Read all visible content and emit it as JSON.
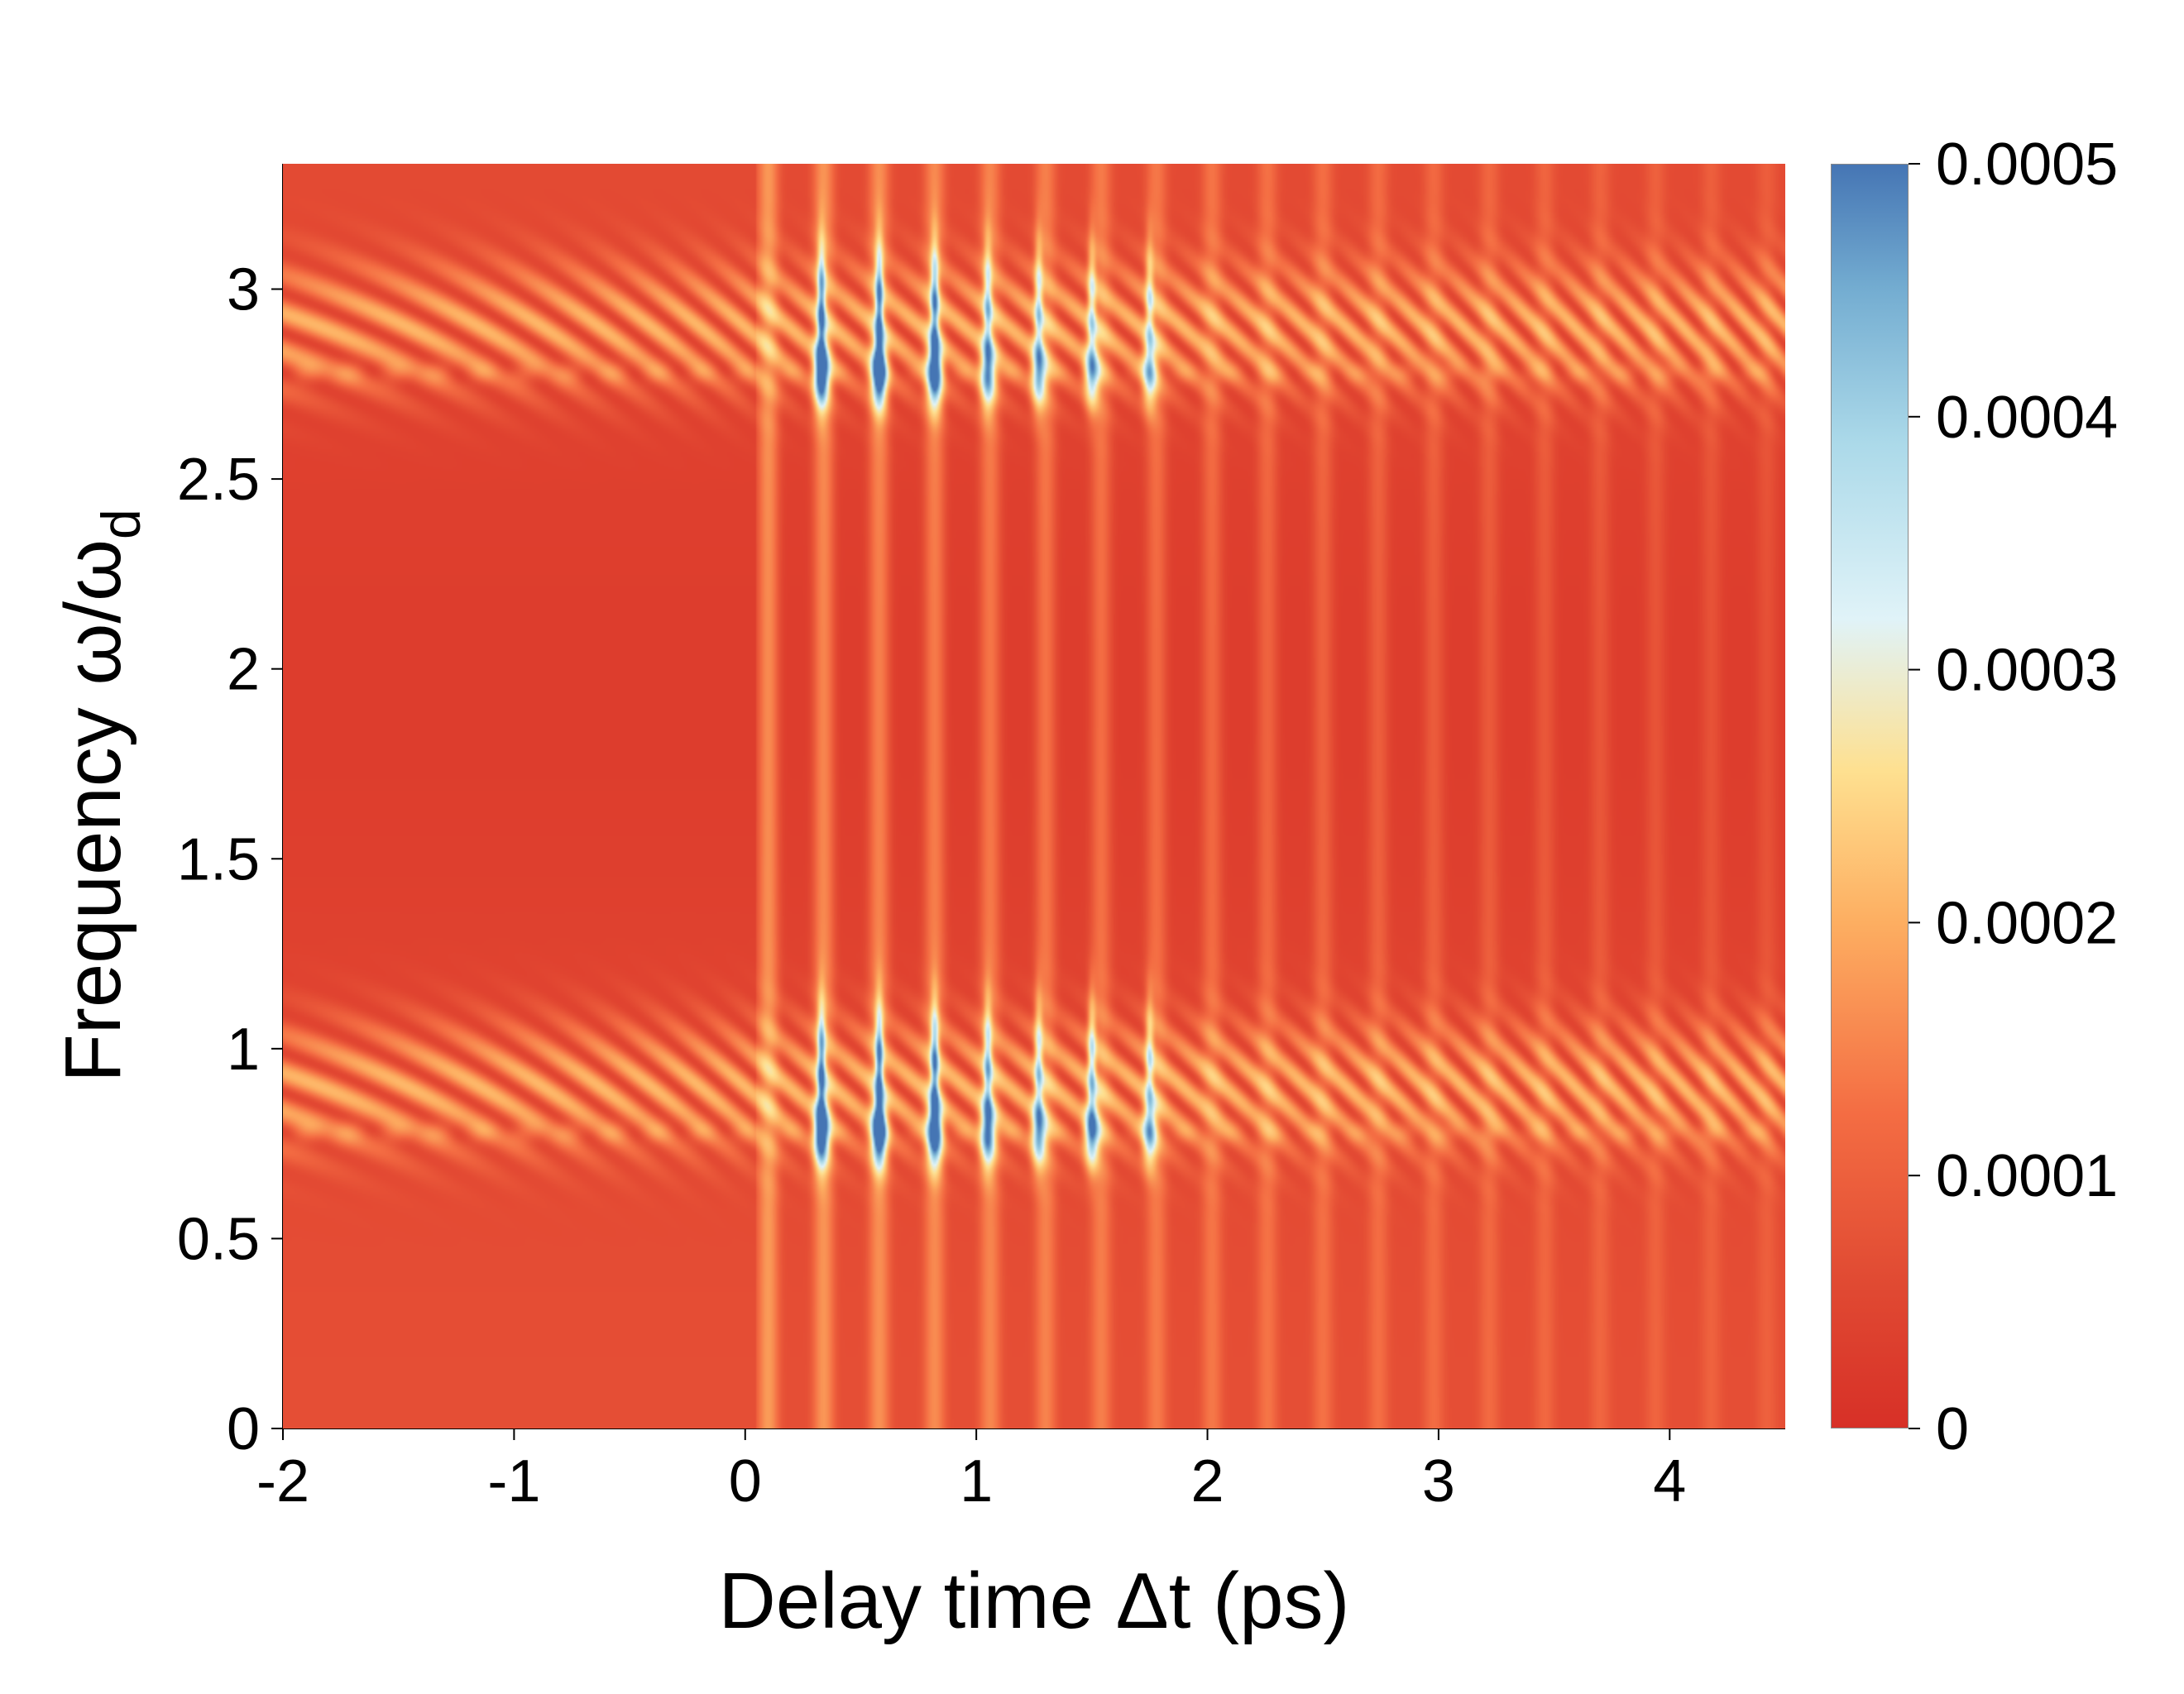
{
  "chart_data": {
    "type": "heatmap",
    "title": "",
    "xlabel": "Delay time Δt (ps)",
    "ylabel": "Frequency ω/ω",
    "ylabel_subscript": "d",
    "xlim": [
      -2,
      4.5
    ],
    "ylim": [
      0,
      3.33
    ],
    "x_ticks": [
      -2,
      -1,
      0,
      1,
      2,
      3,
      4
    ],
    "x_tick_labels": [
      "-2",
      "-1",
      "0",
      "1",
      "2",
      "3",
      "4"
    ],
    "y_ticks": [
      0,
      0.5,
      1,
      1.5,
      2,
      2.5,
      3
    ],
    "y_tick_labels": [
      "0",
      "0.5",
      "1",
      "1.5",
      "2",
      "2.5",
      "3"
    ],
    "colorbar": {
      "range": [
        0,
        0.0005
      ],
      "ticks": [
        0,
        0.0001,
        0.0002,
        0.0003,
        0.0004,
        0.0005
      ],
      "tick_labels": [
        "0",
        "0.0001",
        "0.0002",
        "0.0003",
        "0.0004",
        "0.0005"
      ],
      "colormap": [
        "#d73027",
        "#f46d43",
        "#fdae61",
        "#fee090",
        "#e0f3f8",
        "#abd9e9",
        "#74add1",
        "#4575b4"
      ]
    },
    "bands": [
      {
        "center_frequency": 0.78,
        "upper_edge": 1.02
      },
      {
        "center_frequency": 2.78,
        "upper_edge": 3.02
      }
    ],
    "peaks": [
      {
        "x": 0.33,
        "y": 0.78,
        "value": 0.00048
      },
      {
        "x": 0.58,
        "y": 0.78,
        "value": 0.0005
      },
      {
        "x": 0.82,
        "y": 0.78,
        "value": 0.00047
      },
      {
        "x": 1.05,
        "y": 0.78,
        "value": 0.00036
      },
      {
        "x": 1.27,
        "y": 0.78,
        "value": 0.00032
      },
      {
        "x": 1.5,
        "y": 0.78,
        "value": 0.00035
      },
      {
        "x": 1.75,
        "y": 0.78,
        "value": 0.00028
      },
      {
        "x": 0.33,
        "y": 2.78,
        "value": 0.00048
      },
      {
        "x": 0.58,
        "y": 2.78,
        "value": 0.0005
      },
      {
        "x": 0.82,
        "y": 2.78,
        "value": 0.00046
      },
      {
        "x": 1.05,
        "y": 2.78,
        "value": 0.00033
      },
      {
        "x": 1.27,
        "y": 2.78,
        "value": 0.00031
      },
      {
        "x": 1.5,
        "y": 2.78,
        "value": 0.00029
      },
      {
        "x": 1.75,
        "y": 2.78,
        "value": 0.00026
      }
    ],
    "stripe_period_ps": 0.24,
    "stripe_onset_ps": 0.05
  }
}
